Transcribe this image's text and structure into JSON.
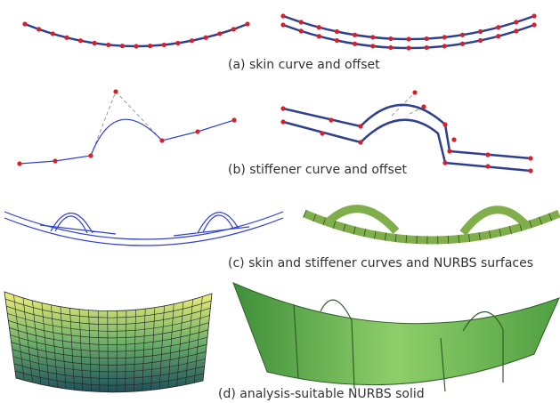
{
  "captions": [
    "(a) skin curve and offset",
    "(b) stiffener curve and offset",
    "(c) skin and stiffener curves and NURBS surfaces",
    "(d) analysis-suitable NURBS solid"
  ]
}
